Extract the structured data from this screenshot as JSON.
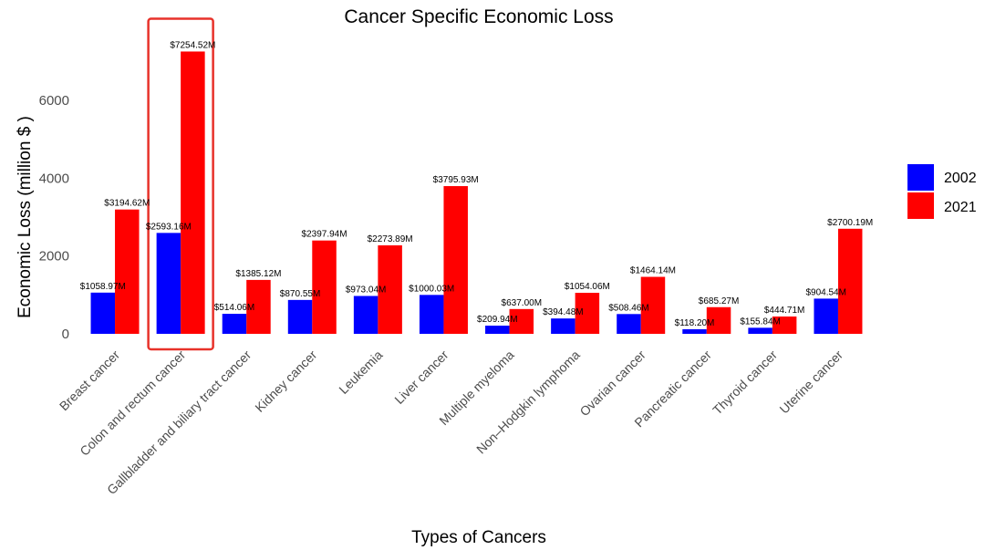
{
  "chart_data": {
    "type": "bar",
    "title": "Cancer Specific Economic Loss",
    "xlabel": "Types of Cancers",
    "ylabel": "Economic Loss (million $ )",
    "ylim": [
      0,
      7400
    ],
    "yticks": [
      0,
      2000,
      4000,
      6000
    ],
    "grid": false,
    "legend_position": "right",
    "categories": [
      "Breast cancer",
      "Colon and rectum cancer",
      "Gallbladder and biliary tract cancer",
      "Kidney cancer",
      "Leukemia",
      "Liver cancer",
      "Multiple myeloma",
      "Non–Hodgkin lymphoma",
      "Ovarian cancer",
      "Pancreatic cancer",
      "Thyroid cancer",
      "Uterine cancer"
    ],
    "series": [
      {
        "name": "2002",
        "color": "#0000ff",
        "values": [
          1058.97,
          2593.16,
          514.06,
          870.55,
          973.04,
          1000.03,
          209.94,
          394.48,
          508.46,
          118.2,
          155.84,
          904.54
        ],
        "labels": [
          "$1058.97M",
          "$2593.16M",
          "$514.06M",
          "$870.55M",
          "$973.04M",
          "$1000.03M",
          "$209.94M",
          "$394.48M",
          "$508.46M",
          "$118.20M",
          "$155.84M",
          "$904.54M"
        ]
      },
      {
        "name": "2021",
        "color": "#ff0000",
        "values": [
          3194.62,
          7254.52,
          1385.12,
          2397.94,
          2273.89,
          3795.93,
          637.0,
          1054.06,
          1464.14,
          685.27,
          444.71,
          2700.19
        ],
        "labels": [
          "$3194.62M",
          "$7254.52M",
          "$1385.12M",
          "$2397.94M",
          "$2273.89M",
          "$3795.93M",
          "$637.00M",
          "$1054.06M",
          "$1464.14M",
          "$685.27M",
          "$444.71M",
          "$2700.19M"
        ]
      }
    ],
    "highlight": {
      "category_index": 1,
      "color": "#e8322a"
    }
  }
}
